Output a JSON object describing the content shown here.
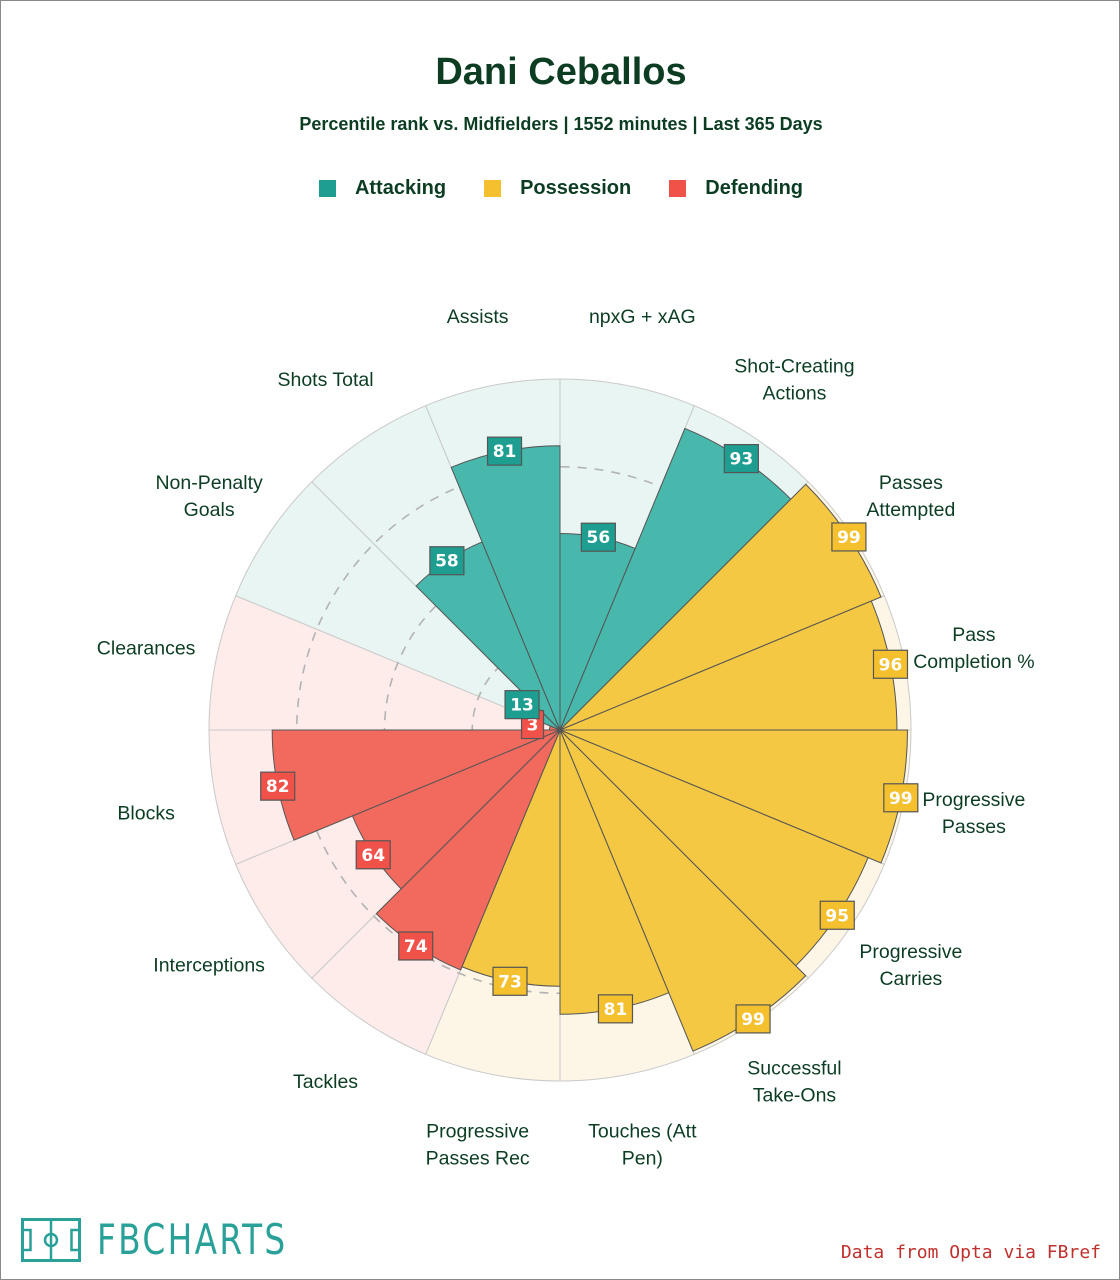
{
  "chart_data": {
    "type": "polar-bar",
    "title": "Dani Ceballos",
    "subtitle": "Percentile rank vs. Midfielders | 1552 minutes | Last 365 Days",
    "rlim": [
      0,
      100
    ],
    "gridlines": [
      25,
      50,
      75
    ],
    "legend": [
      {
        "name": "Attacking",
        "color": "#1e9e90"
      },
      {
        "name": "Possession",
        "color": "#f4c02e"
      },
      {
        "name": "Defending",
        "color": "#f0524a"
      }
    ],
    "series": [
      {
        "name": "Attacking",
        "color": "#1e9e90",
        "bar_color": "#48b8ac",
        "bg_color": "#e8f5f2",
        "stats": [
          {
            "label": "npxG + xAG",
            "value": 56
          },
          {
            "label": "Shot-Creating Actions",
            "value": 93
          }
        ]
      },
      {
        "name": "Possession",
        "color": "#f4c02e",
        "bar_color": "#f4c842",
        "bg_color": "#fdf6e6",
        "stats": [
          {
            "label": "Passes Attempted",
            "value": 99
          },
          {
            "label": "Pass Completion %",
            "value": 96
          },
          {
            "label": "Progressive Passes",
            "value": 99
          },
          {
            "label": "Progressive Carries",
            "value": 95
          },
          {
            "label": "Successful Take-Ons",
            "value": 99
          },
          {
            "label": "Touches (Att Pen)",
            "value": 81
          },
          {
            "label": "Progressive Passes Rec",
            "value": 73
          }
        ]
      },
      {
        "name": "Defending",
        "color": "#f0524a",
        "bar_color": "#f26a5e",
        "bg_color": "#fdecea",
        "stats": [
          {
            "label": "Tackles",
            "value": 74
          },
          {
            "label": "Interceptions",
            "value": 64
          },
          {
            "label": "Blocks",
            "value": 82
          },
          {
            "label": "Clearances",
            "value": 3
          }
        ]
      },
      {
        "name": "Attacking",
        "color": "#1e9e90",
        "bar_color": "#48b8ac",
        "bg_color": "#e8f5f2",
        "stats": [
          {
            "label": "Non-Penalty Goals",
            "value": 13
          },
          {
            "label": "Shots Total",
            "value": 58
          },
          {
            "label": "Assists",
            "value": 81
          }
        ]
      }
    ]
  },
  "branding": {
    "logo_text": "FBCHARTS",
    "credit": "Data from Opta via FBref"
  }
}
